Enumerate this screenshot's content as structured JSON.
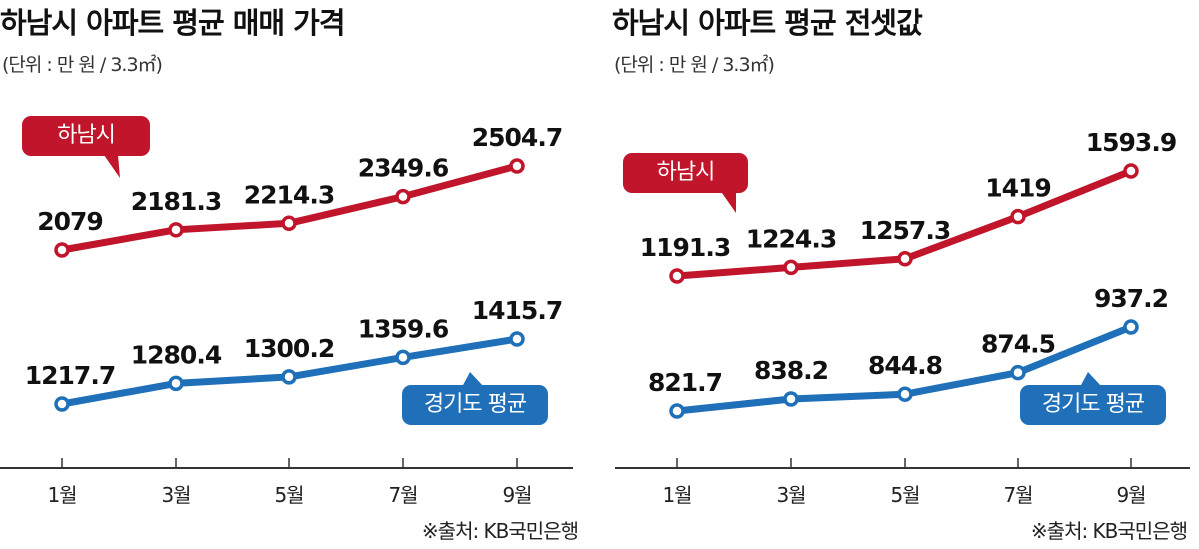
{
  "colors": {
    "hanam": "#c0152a",
    "gyeonggi": "#1f70b8",
    "axis": "#333333"
  },
  "chart_data": [
    {
      "type": "line",
      "title": "하남시 아파트 평균 매매 가격",
      "unit": "(단위 : 만 원 / 3.3㎡)",
      "categories": [
        "1월",
        "3월",
        "5월",
        "7월",
        "9월"
      ],
      "series": [
        {
          "name": "하남시",
          "values": [
            2079,
            2181.3,
            2214.3,
            2349.6,
            2504.7
          ],
          "labels": [
            "2079",
            "2181.3",
            "2214.3",
            "2349.6",
            "2504.7"
          ]
        },
        {
          "name": "경기도 평균",
          "values": [
            1217.7,
            1280.4,
            1300.2,
            1359.6,
            1415.7
          ],
          "labels": [
            "1217.7",
            "1280.4",
            "1300.2",
            "1359.6",
            "1415.7"
          ]
        }
      ],
      "source": "※출처: KB국민은행"
    },
    {
      "type": "line",
      "title": "하남시 아파트 평균 전셋값",
      "unit": "(단위 : 만 원 / 3.3㎡)",
      "categories": [
        "1월",
        "3월",
        "5월",
        "7월",
        "9월"
      ],
      "series": [
        {
          "name": "하남시",
          "values": [
            1191.3,
            1224.3,
            1257.3,
            1419,
            1593.9
          ],
          "labels": [
            "1191.3",
            "1224.3",
            "1257.3",
            "1419",
            "1593.9"
          ]
        },
        {
          "name": "경기도 평균",
          "values": [
            821.7,
            838.2,
            844.8,
            874.5,
            937.2
          ],
          "labels": [
            "821.7",
            "838.2",
            "844.8",
            "874.5",
            "937.2"
          ]
        }
      ],
      "source": "※출처: KB국민은행"
    }
  ]
}
